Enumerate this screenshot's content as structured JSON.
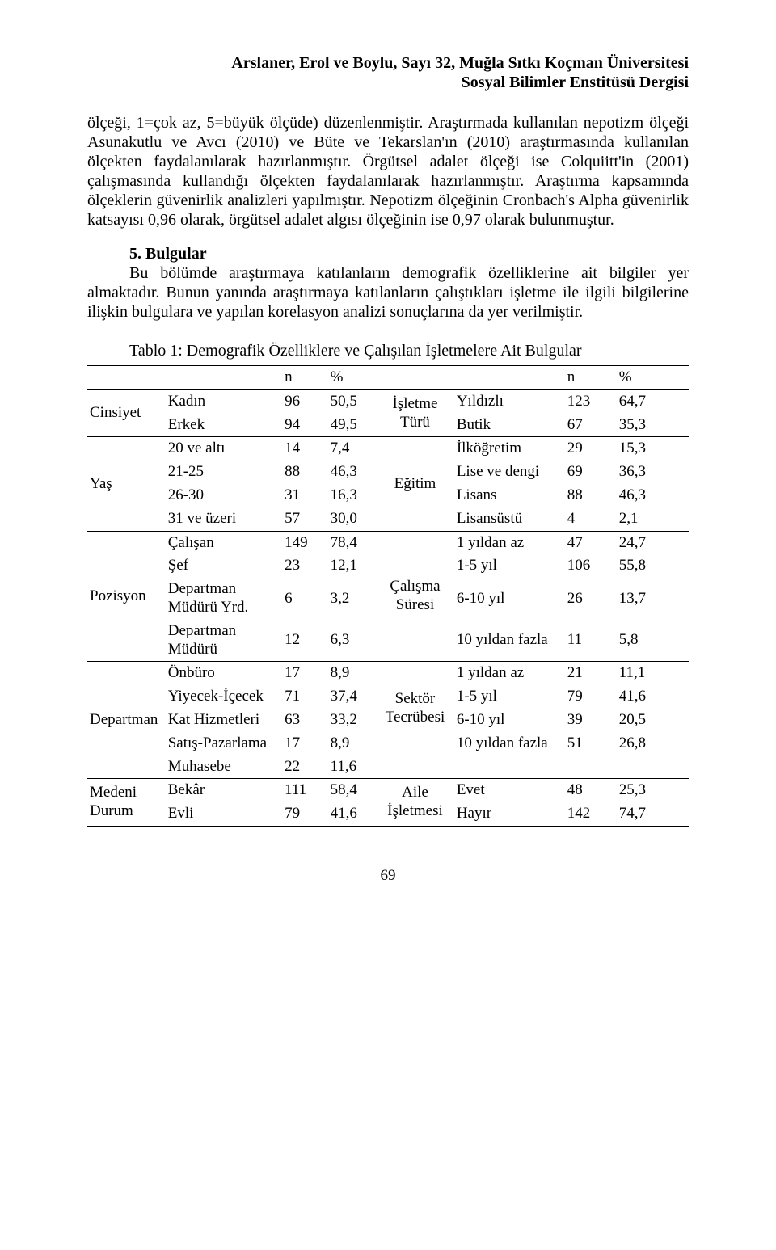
{
  "header": {
    "line1": "Arslaner, Erol ve Boylu, Sayı 32, Muğla Sıtkı Koçman Üniversitesi",
    "line2": "Sosyal Bilimler Enstitüsü Dergisi"
  },
  "paragraph1": "ölçeği, 1=çok az, 5=büyük ölçüde) düzenlenmiştir. Araştırmada kullanılan nepotizm ölçeği Asunakutlu ve Avcı (2010) ve Büte ve Tekarslan'ın (2010) araştırmasında kullanılan ölçekten faydalanılarak hazırlanmıştır. Örgütsel adalet ölçeği ise Colquiitt'in (2001) çalışmasında kullandığı ölçekten faydalanılarak hazırlanmıştır. Araştırma kapsamında ölçeklerin güvenirlik analizleri yapılmıştır. Nepotizm ölçeğinin Cronbach's Alpha güvenirlik katsayısı 0,96 olarak, örgütsel adalet algısı ölçeğinin ise 0,97 olarak bulunmuştur.",
  "section_title": "5. Bulgular",
  "paragraph2": "Bu bölümde araştırmaya katılanların demografik özelliklerine ait bilgiler yer almaktadır. Bunun yanında araştırmaya katılanların çalıştıkları işletme ile ilgili bilgilerine ilişkin bulgulara ve yapılan korelasyon analizi sonuçlarına da yer verilmiştir.",
  "table_title": "Tablo 1: Demografik Özelliklere ve Çalışılan İşletmelere Ait Bulgular",
  "page_number": "69",
  "table": {
    "head_n": "n",
    "head_pct": "%",
    "groups": [
      {
        "var_left": "Cinsiyet",
        "var_right": "İşletme Türü",
        "rows": [
          {
            "l_cat": "Kadın",
            "l_n": "96",
            "l_pct": "50,5",
            "r_cat": "Yıldızlı",
            "r_n": "123",
            "r_pct": "64,7"
          },
          {
            "l_cat": "Erkek",
            "l_n": "94",
            "l_pct": "49,5",
            "r_cat": "Butik",
            "r_n": "67",
            "r_pct": "35,3"
          }
        ]
      },
      {
        "var_left": "Yaş",
        "var_right": "Eğitim",
        "rows": [
          {
            "l_cat": "20 ve altı",
            "l_n": "14",
            "l_pct": "7,4",
            "r_cat": "İlköğretim",
            "r_n": "29",
            "r_pct": "15,3"
          },
          {
            "l_cat": "21-25",
            "l_n": "88",
            "l_pct": "46,3",
            "r_cat": "Lise ve dengi",
            "r_n": "69",
            "r_pct": "36,3"
          },
          {
            "l_cat": "26-30",
            "l_n": "31",
            "l_pct": "16,3",
            "r_cat": "Lisans",
            "r_n": "88",
            "r_pct": "46,3"
          },
          {
            "l_cat": "31 ve üzeri",
            "l_n": "57",
            "l_pct": "30,0",
            "r_cat": "Lisansüstü",
            "r_n": "4",
            "r_pct": "2,1"
          }
        ]
      },
      {
        "var_left": "Pozisyon",
        "var_right": "Çalışma Süresi",
        "rows": [
          {
            "l_cat": "Çalışan",
            "l_n": "149",
            "l_pct": "78,4",
            "r_cat": "1 yıldan az",
            "r_n": "47",
            "r_pct": "24,7"
          },
          {
            "l_cat": "Şef",
            "l_n": "23",
            "l_pct": "12,1",
            "r_cat": "1-5 yıl",
            "r_n": "106",
            "r_pct": "55,8"
          },
          {
            "l_cat": "Departman Müdürü Yrd.",
            "l_n": "6",
            "l_pct": "3,2",
            "r_cat": "6-10 yıl",
            "r_n": "26",
            "r_pct": "13,7"
          },
          {
            "l_cat": "Departman Müdürü",
            "l_n": "12",
            "l_pct": "6,3",
            "r_cat": "10 yıldan fazla",
            "r_n": "11",
            "r_pct": "5,8"
          }
        ]
      },
      {
        "var_left": "Departman",
        "var_right": "Sektör Tecrübesi",
        "rows": [
          {
            "l_cat": "Önbüro",
            "l_n": "17",
            "l_pct": "8,9",
            "r_cat": "1 yıldan az",
            "r_n": "21",
            "r_pct": "11,1"
          },
          {
            "l_cat": "Yiyecek-İçecek",
            "l_n": "71",
            "l_pct": "37,4",
            "r_cat": "1-5 yıl",
            "r_n": "79",
            "r_pct": "41,6"
          },
          {
            "l_cat": "Kat Hizmetleri",
            "l_n": "63",
            "l_pct": "33,2",
            "r_cat": "6-10 yıl",
            "r_n": "39",
            "r_pct": "20,5"
          },
          {
            "l_cat": "Satış-Pazarlama",
            "l_n": "17",
            "l_pct": "8,9",
            "r_cat": "10 yıldan fazla",
            "r_n": "51",
            "r_pct": "26,8"
          },
          {
            "l_cat": "Muhasebe",
            "l_n": "22",
            "l_pct": "11,6",
            "r_cat": "",
            "r_n": "",
            "r_pct": ""
          }
        ]
      },
      {
        "var_left": "Medeni Durum",
        "var_right": "Aile İşletmesi",
        "rows": [
          {
            "l_cat": "Bekâr",
            "l_n": "111",
            "l_pct": "58,4",
            "r_cat": "Evet",
            "r_n": "48",
            "r_pct": "25,3"
          },
          {
            "l_cat": "Evli",
            "l_n": "79",
            "l_pct": "41,6",
            "r_cat": "Hayır",
            "r_n": "142",
            "r_pct": "74,7"
          }
        ]
      }
    ]
  }
}
